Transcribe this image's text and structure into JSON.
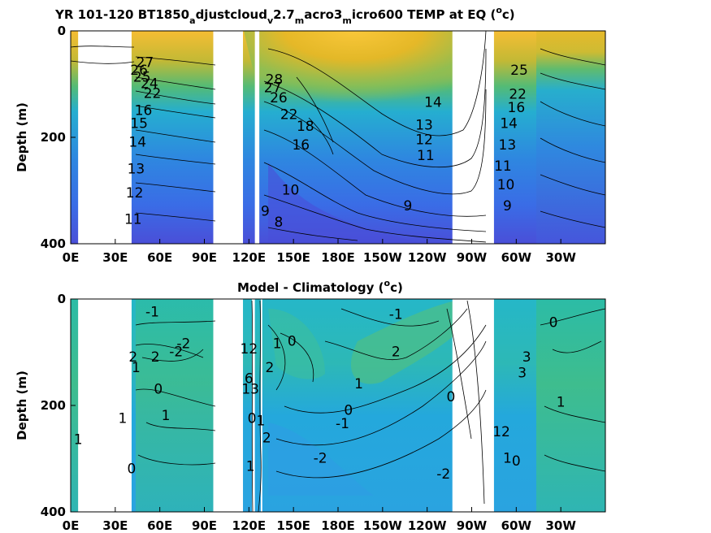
{
  "chart_data": [
    {
      "type": "heatmap",
      "title_parts": [
        "YR 101-120 BT1850",
        "a",
        "djustcloud",
        "v",
        "2.7",
        "m",
        "acro3",
        "m",
        "icro600 TEMP at EQ (",
        "o",
        "c)"
      ],
      "ylabel": "Depth (m)",
      "x_ticks": [
        "0E",
        "30E",
        "60E",
        "90E",
        "120E",
        "150E",
        "180E",
        "150W",
        "120W",
        "90W",
        "60W",
        "30W"
      ],
      "y_ticks": [
        "0",
        "200",
        "400"
      ],
      "xlim": [
        0,
        360
      ],
      "ylim": [
        400,
        0
      ],
      "colormap": "parula",
      "land_gaps_lon": [
        [
          5,
          41
        ],
        [
          96,
          116
        ],
        [
          124,
          127
        ],
        [
          257,
          285
        ]
      ],
      "contour_labels": [
        {
          "text": "27",
          "lon": 50,
          "depth": 60
        },
        {
          "text": "26",
          "lon": 46,
          "depth": 75
        },
        {
          "text": "25",
          "lon": 48,
          "depth": 88
        },
        {
          "text": "24",
          "lon": 53,
          "depth": 100
        },
        {
          "text": "22",
          "lon": 55,
          "depth": 118
        },
        {
          "text": "16",
          "lon": 49,
          "depth": 150
        },
        {
          "text": "15",
          "lon": 46,
          "depth": 175
        },
        {
          "text": "14",
          "lon": 45,
          "depth": 210
        },
        {
          "text": "13",
          "lon": 44,
          "depth": 260
        },
        {
          "text": "12",
          "lon": 43,
          "depth": 305
        },
        {
          "text": "11",
          "lon": 42,
          "depth": 355
        },
        {
          "text": "28",
          "lon": 137,
          "depth": 92
        },
        {
          "text": "27",
          "lon": 136,
          "depth": 108
        },
        {
          "text": "26",
          "lon": 140,
          "depth": 127
        },
        {
          "text": "22",
          "lon": 147,
          "depth": 158
        },
        {
          "text": "18",
          "lon": 158,
          "depth": 180
        },
        {
          "text": "16",
          "lon": 155,
          "depth": 215
        },
        {
          "text": "10",
          "lon": 148,
          "depth": 300
        },
        {
          "text": "9",
          "lon": 131,
          "depth": 340
        },
        {
          "text": "8",
          "lon": 140,
          "depth": 360
        },
        {
          "text": "14",
          "lon": 244,
          "depth": 135
        },
        {
          "text": "13",
          "lon": 238,
          "depth": 178
        },
        {
          "text": "12",
          "lon": 238,
          "depth": 205
        },
        {
          "text": "11",
          "lon": 239,
          "depth": 235
        },
        {
          "text": "9",
          "lon": 227,
          "depth": 330
        },
        {
          "text": "25",
          "lon": 302,
          "depth": 75
        },
        {
          "text": "22",
          "lon": 301,
          "depth": 120
        },
        {
          "text": "16",
          "lon": 300,
          "depth": 145
        },
        {
          "text": "14",
          "lon": 295,
          "depth": 175
        },
        {
          "text": "13",
          "lon": 294,
          "depth": 215
        },
        {
          "text": "11",
          "lon": 291,
          "depth": 255
        },
        {
          "text": "10",
          "lon": 293,
          "depth": 290
        },
        {
          "text": "9",
          "lon": 294,
          "depth": 330
        }
      ]
    },
    {
      "type": "heatmap",
      "title_parts": [
        "Model - Climatology (",
        "o",
        "c)"
      ],
      "ylabel": "Depth (m)",
      "x_ticks": [
        "0E",
        "30E",
        "60E",
        "90E",
        "120E",
        "150E",
        "180E",
        "150W",
        "120W",
        "90W",
        "60W",
        "30W"
      ],
      "y_ticks": [
        "0",
        "200",
        "400"
      ],
      "xlim": [
        0,
        360
      ],
      "ylim": [
        400,
        0
      ],
      "colormap": "parula",
      "land_gaps_lon": [
        [
          5,
          41
        ],
        [
          96,
          116
        ],
        [
          122,
          124
        ],
        [
          128,
          129
        ],
        [
          257,
          285
        ]
      ],
      "contour_labels": [
        {
          "text": "-1",
          "lon": 55,
          "depth": 25
        },
        {
          "text": "2",
          "lon": 42,
          "depth": 110
        },
        {
          "text": "1",
          "lon": 44,
          "depth": 130
        },
        {
          "text": "2",
          "lon": 57,
          "depth": 110
        },
        {
          "text": "-2",
          "lon": 71,
          "depth": 100
        },
        {
          "text": "-2",
          "lon": 76,
          "depth": 85
        },
        {
          "text": "0",
          "lon": 59,
          "depth": 170
        },
        {
          "text": "1",
          "lon": 64,
          "depth": 220
        },
        {
          "text": "1",
          "lon": 35,
          "depth": 225
        },
        {
          "text": "0",
          "lon": 41,
          "depth": 320
        },
        {
          "text": "1",
          "lon": 5,
          "depth": 265
        },
        {
          "text": "12",
          "lon": 120,
          "depth": 95
        },
        {
          "text": "6",
          "lon": 120,
          "depth": 150
        },
        {
          "text": "13",
          "lon": 121,
          "depth": 170
        },
        {
          "text": "0",
          "lon": 122,
          "depth": 225
        },
        {
          "text": "1",
          "lon": 121,
          "depth": 315
        },
        {
          "text": "1",
          "lon": 139,
          "depth": 85
        },
        {
          "text": "0",
          "lon": 149,
          "depth": 80
        },
        {
          "text": "2",
          "lon": 134,
          "depth": 130
        },
        {
          "text": "1",
          "lon": 128,
          "depth": 230
        },
        {
          "text": "2",
          "lon": 132,
          "depth": 262
        },
        {
          "text": "0",
          "lon": 187,
          "depth": 210
        },
        {
          "text": "-1",
          "lon": 183,
          "depth": 235
        },
        {
          "text": "1",
          "lon": 194,
          "depth": 160
        },
        {
          "text": "2",
          "lon": 219,
          "depth": 100
        },
        {
          "text": "-1",
          "lon": 219,
          "depth": 30
        },
        {
          "text": "-2",
          "lon": 168,
          "depth": 300
        },
        {
          "text": "-2",
          "lon": 251,
          "depth": 330
        },
        {
          "text": "0",
          "lon": 256,
          "depth": 185
        },
        {
          "text": "0",
          "lon": 325,
          "depth": 45
        },
        {
          "text": "3",
          "lon": 307,
          "depth": 110
        },
        {
          "text": "3",
          "lon": 304,
          "depth": 140
        },
        {
          "text": "1",
          "lon": 330,
          "depth": 195
        },
        {
          "text": "12",
          "lon": 290,
          "depth": 250
        },
        {
          "text": "1",
          "lon": 294,
          "depth": 300
        },
        {
          "text": "0",
          "lon": 300,
          "depth": 305
        }
      ]
    }
  ]
}
